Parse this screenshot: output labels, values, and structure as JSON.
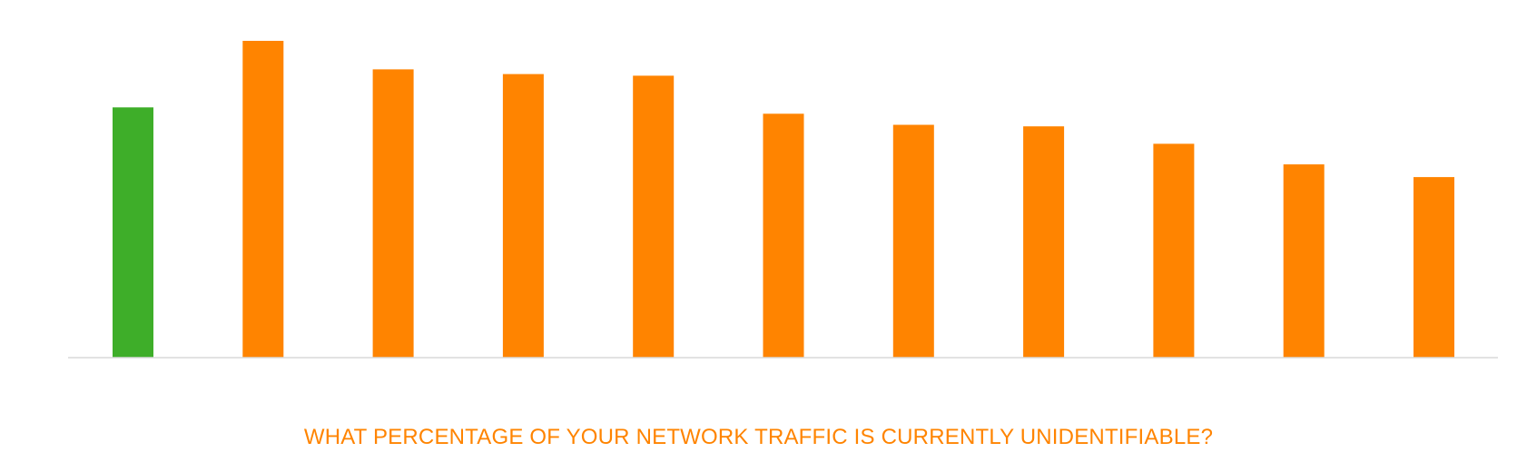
{
  "chart_data": {
    "type": "bar",
    "title": "WHAT PERCENTAGE OF YOUR NETWORK TRAFFIC IS CURRENTLY UNIDENTIFIABLE?",
    "categories": [
      "",
      "",
      "",
      "",
      "",
      "",
      "",
      "",
      "",
      "",
      ""
    ],
    "values": [
      79,
      100,
      91,
      89.5,
      89,
      77,
      73.5,
      73,
      67.5,
      61,
      57
    ],
    "ylim": [
      0,
      100
    ],
    "grid": false,
    "bar_colors": [
      "#3EAE29",
      "#FF8400",
      "#FF8400",
      "#FF8400",
      "#FF8400",
      "#FF8400",
      "#FF8400",
      "#FF8400",
      "#FF8400",
      "#FF8400",
      "#FF8400"
    ],
    "axis_color": "#D9D9D9",
    "title_color": "#FF8400"
  }
}
